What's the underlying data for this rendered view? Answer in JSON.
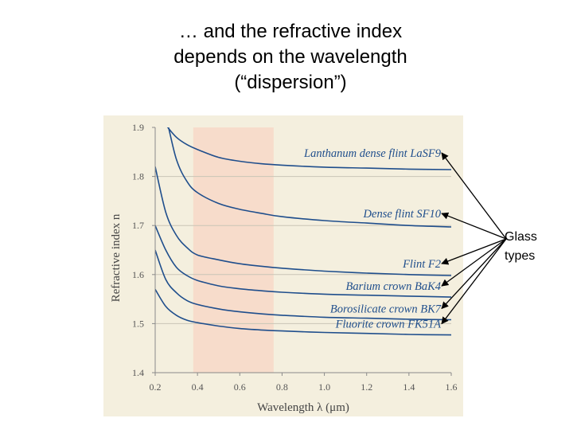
{
  "slide": {
    "title_lines": [
      "… and the refractive index",
      "depends on the wavelength",
      "(“dispersion”)"
    ],
    "annotation_lines": [
      "Glass",
      "types"
    ]
  },
  "chart_data": {
    "type": "line",
    "title": "",
    "xlabel": "Wavelength λ (μm)",
    "ylabel": "Refractive index n",
    "xlim": [
      0.2,
      1.6
    ],
    "ylim": [
      1.4,
      1.9
    ],
    "x_ticks": [
      "0.2",
      "0.4",
      "0.6",
      "0.8",
      "1.0",
      "1.2",
      "1.4",
      "1.6"
    ],
    "y_ticks": [
      "1.4",
      "1.5",
      "1.6",
      "1.7",
      "1.8",
      "1.9"
    ],
    "grid": "horizontal",
    "visible_band": {
      "from": 0.38,
      "to": 0.76,
      "color": "#f7dccb"
    },
    "line_color": "#1f4e8c",
    "background_color": "#f4efde",
    "x": [
      0.2,
      0.25,
      0.3,
      0.35,
      0.4,
      0.5,
      0.6,
      0.7,
      0.8,
      1.0,
      1.2,
      1.4,
      1.6
    ],
    "series": [
      {
        "name": "Lanthanum dense flint LaSF9",
        "values": [
          1.93,
          1.905,
          1.88,
          1.865,
          1.855,
          1.839,
          1.831,
          1.826,
          1.823,
          1.819,
          1.817,
          1.815,
          1.814
        ]
      },
      {
        "name": "Dense flint SF10",
        "values": [
          1.96,
          1.92,
          1.835,
          1.79,
          1.767,
          1.745,
          1.733,
          1.725,
          1.718,
          1.71,
          1.705,
          1.7,
          1.697
        ]
      },
      {
        "name": "Flint F2",
        "values": [
          1.82,
          1.727,
          1.68,
          1.655,
          1.64,
          1.63,
          1.622,
          1.617,
          1.613,
          1.607,
          1.603,
          1.6,
          1.598
        ]
      },
      {
        "name": "Barium crown BaK4",
        "values": [
          1.7,
          1.65,
          1.615,
          1.598,
          1.588,
          1.577,
          1.571,
          1.567,
          1.564,
          1.56,
          1.558,
          1.556,
          1.554
        ]
      },
      {
        "name": "Borosilicate crown BK7",
        "values": [
          1.65,
          1.59,
          1.563,
          1.547,
          1.539,
          1.53,
          1.524,
          1.52,
          1.517,
          1.513,
          1.511,
          1.509,
          1.508
        ]
      },
      {
        "name": "Fluorite crown FK51A",
        "values": [
          1.57,
          1.535,
          1.517,
          1.507,
          1.502,
          1.495,
          1.49,
          1.487,
          1.485,
          1.482,
          1.48,
          1.478,
          1.477
        ]
      }
    ]
  }
}
